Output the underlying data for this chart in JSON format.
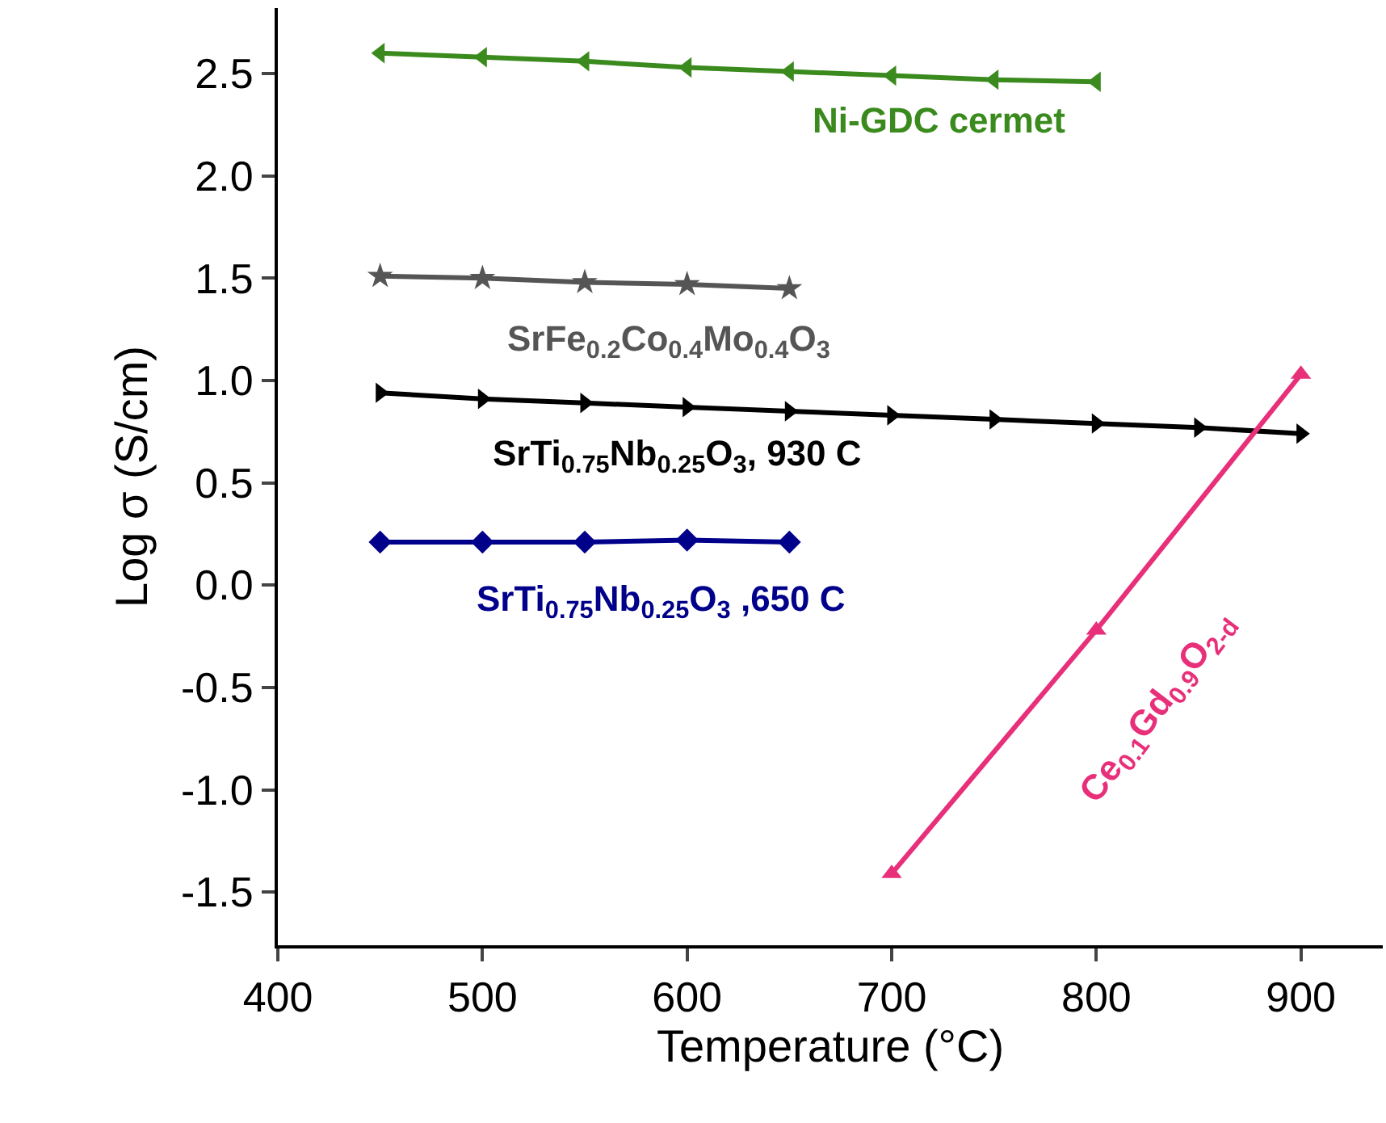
{
  "chart_data": {
    "type": "line",
    "xlabel": "Temperature (°C)",
    "ylabel": "Log σ (S/cm)",
    "xlim": [
      400,
      940
    ],
    "ylim": [
      -1.76,
      2.82
    ],
    "xticks": [
      400,
      500,
      600,
      700,
      800,
      900
    ],
    "yticks": [
      {
        "value": -1.5,
        "label": "-1.5"
      },
      {
        "value": -1,
        "label": "-1.0"
      },
      {
        "value": -0.5,
        "label": "-0.5"
      },
      {
        "value": 0,
        "label": "0.0"
      },
      {
        "value": 0.5,
        "label": "0.5"
      },
      {
        "value": 1,
        "label": "1.0"
      },
      {
        "value": 1.5,
        "label": "1.5"
      },
      {
        "value": 2,
        "label": "2.0"
      },
      {
        "value": 2.5,
        "label": "2.5"
      }
    ],
    "grid": false,
    "legend": false,
    "line_style": "solid",
    "series": [
      {
        "name": "Ni-GDC cermet",
        "color": "#3a8a1e",
        "marker": "triangle",
        "x": [
          450,
          500,
          550,
          600,
          650,
          700,
          750,
          800
        ],
        "values": [
          2.6,
          2.58,
          2.56,
          2.53,
          2.51,
          2.49,
          2.47,
          2.46
        ]
      },
      {
        "name": "SrFe$_{0.2}$Co$_{0.4}$Mo$_{0.4}$O$_{3}$",
        "color": "#555555",
        "marker": "star",
        "x": [
          450,
          500,
          550,
          600,
          650
        ],
        "values": [
          1.51,
          1.5,
          1.48,
          1.47,
          1.45
        ]
      },
      {
        "name": "SrTi$_{0.75}$Nb$_{0.25}$O$_{3}$, 930 C",
        "color": "#000000",
        "marker": "triangle",
        "x": [
          450,
          500,
          550,
          600,
          650,
          700,
          750,
          800,
          850,
          900
        ],
        "values": [
          0.94,
          0.91,
          0.89,
          0.87,
          0.85,
          0.83,
          0.81,
          0.79,
          0.77,
          0.74
        ]
      },
      {
        "name": "SrTi$_{0.75}$Nb$_{0.25}$O$_{3}$ ,650 C",
        "color": "#00008b",
        "marker": "diamond",
        "x": [
          450,
          500,
          550,
          600,
          650
        ],
        "values": [
          0.21,
          0.21,
          0.21,
          0.22,
          0.21
        ]
      },
      {
        "name": "Ce$_{0.1}$Gd$_{0.9}$O$_{2-d}$",
        "color": "#e8307a",
        "marker": "triangle",
        "x": [
          700,
          800,
          900
        ],
        "values": [
          -1.41,
          -0.22,
          1.03
        ]
      }
    ]
  }
}
